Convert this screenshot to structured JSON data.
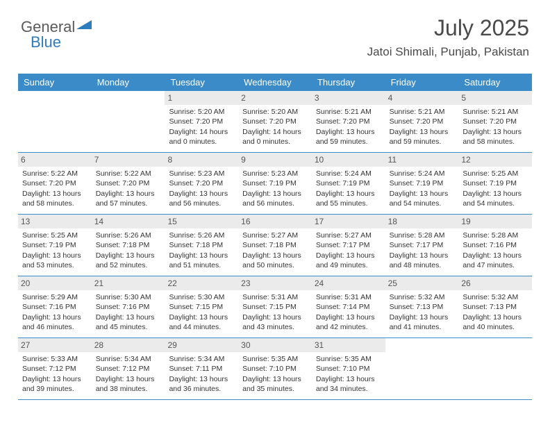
{
  "logo": {
    "text1": "General",
    "text2": "Blue"
  },
  "header": {
    "month": "July 2025",
    "location": "Jatoi Shimali, Punjab, Pakistan"
  },
  "colors": {
    "header_bar": "#3b8bc8",
    "header_text": "#ffffff",
    "daynum_bg": "#ebebeb",
    "daynum_text": "#555555",
    "body_text": "#333333",
    "logo_gray": "#5a5a5a",
    "logo_blue": "#2e7cc0",
    "title_text": "#4a4a4a"
  },
  "day_names": [
    "Sunday",
    "Monday",
    "Tuesday",
    "Wednesday",
    "Thursday",
    "Friday",
    "Saturday"
  ],
  "weeks": [
    [
      {
        "n": "",
        "sr": "",
        "ss": "",
        "dl": ""
      },
      {
        "n": "",
        "sr": "",
        "ss": "",
        "dl": ""
      },
      {
        "n": "1",
        "sr": "Sunrise: 5:20 AM",
        "ss": "Sunset: 7:20 PM",
        "dl": "Daylight: 14 hours and 0 minutes."
      },
      {
        "n": "2",
        "sr": "Sunrise: 5:20 AM",
        "ss": "Sunset: 7:20 PM",
        "dl": "Daylight: 14 hours and 0 minutes."
      },
      {
        "n": "3",
        "sr": "Sunrise: 5:21 AM",
        "ss": "Sunset: 7:20 PM",
        "dl": "Daylight: 13 hours and 59 minutes."
      },
      {
        "n": "4",
        "sr": "Sunrise: 5:21 AM",
        "ss": "Sunset: 7:20 PM",
        "dl": "Daylight: 13 hours and 59 minutes."
      },
      {
        "n": "5",
        "sr": "Sunrise: 5:21 AM",
        "ss": "Sunset: 7:20 PM",
        "dl": "Daylight: 13 hours and 58 minutes."
      }
    ],
    [
      {
        "n": "6",
        "sr": "Sunrise: 5:22 AM",
        "ss": "Sunset: 7:20 PM",
        "dl": "Daylight: 13 hours and 58 minutes."
      },
      {
        "n": "7",
        "sr": "Sunrise: 5:22 AM",
        "ss": "Sunset: 7:20 PM",
        "dl": "Daylight: 13 hours and 57 minutes."
      },
      {
        "n": "8",
        "sr": "Sunrise: 5:23 AM",
        "ss": "Sunset: 7:20 PM",
        "dl": "Daylight: 13 hours and 56 minutes."
      },
      {
        "n": "9",
        "sr": "Sunrise: 5:23 AM",
        "ss": "Sunset: 7:19 PM",
        "dl": "Daylight: 13 hours and 56 minutes."
      },
      {
        "n": "10",
        "sr": "Sunrise: 5:24 AM",
        "ss": "Sunset: 7:19 PM",
        "dl": "Daylight: 13 hours and 55 minutes."
      },
      {
        "n": "11",
        "sr": "Sunrise: 5:24 AM",
        "ss": "Sunset: 7:19 PM",
        "dl": "Daylight: 13 hours and 54 minutes."
      },
      {
        "n": "12",
        "sr": "Sunrise: 5:25 AM",
        "ss": "Sunset: 7:19 PM",
        "dl": "Daylight: 13 hours and 54 minutes."
      }
    ],
    [
      {
        "n": "13",
        "sr": "Sunrise: 5:25 AM",
        "ss": "Sunset: 7:19 PM",
        "dl": "Daylight: 13 hours and 53 minutes."
      },
      {
        "n": "14",
        "sr": "Sunrise: 5:26 AM",
        "ss": "Sunset: 7:18 PM",
        "dl": "Daylight: 13 hours and 52 minutes."
      },
      {
        "n": "15",
        "sr": "Sunrise: 5:26 AM",
        "ss": "Sunset: 7:18 PM",
        "dl": "Daylight: 13 hours and 51 minutes."
      },
      {
        "n": "16",
        "sr": "Sunrise: 5:27 AM",
        "ss": "Sunset: 7:18 PM",
        "dl": "Daylight: 13 hours and 50 minutes."
      },
      {
        "n": "17",
        "sr": "Sunrise: 5:27 AM",
        "ss": "Sunset: 7:17 PM",
        "dl": "Daylight: 13 hours and 49 minutes."
      },
      {
        "n": "18",
        "sr": "Sunrise: 5:28 AM",
        "ss": "Sunset: 7:17 PM",
        "dl": "Daylight: 13 hours and 48 minutes."
      },
      {
        "n": "19",
        "sr": "Sunrise: 5:28 AM",
        "ss": "Sunset: 7:16 PM",
        "dl": "Daylight: 13 hours and 47 minutes."
      }
    ],
    [
      {
        "n": "20",
        "sr": "Sunrise: 5:29 AM",
        "ss": "Sunset: 7:16 PM",
        "dl": "Daylight: 13 hours and 46 minutes."
      },
      {
        "n": "21",
        "sr": "Sunrise: 5:30 AM",
        "ss": "Sunset: 7:16 PM",
        "dl": "Daylight: 13 hours and 45 minutes."
      },
      {
        "n": "22",
        "sr": "Sunrise: 5:30 AM",
        "ss": "Sunset: 7:15 PM",
        "dl": "Daylight: 13 hours and 44 minutes."
      },
      {
        "n": "23",
        "sr": "Sunrise: 5:31 AM",
        "ss": "Sunset: 7:15 PM",
        "dl": "Daylight: 13 hours and 43 minutes."
      },
      {
        "n": "24",
        "sr": "Sunrise: 5:31 AM",
        "ss": "Sunset: 7:14 PM",
        "dl": "Daylight: 13 hours and 42 minutes."
      },
      {
        "n": "25",
        "sr": "Sunrise: 5:32 AM",
        "ss": "Sunset: 7:13 PM",
        "dl": "Daylight: 13 hours and 41 minutes."
      },
      {
        "n": "26",
        "sr": "Sunrise: 5:32 AM",
        "ss": "Sunset: 7:13 PM",
        "dl": "Daylight: 13 hours and 40 minutes."
      }
    ],
    [
      {
        "n": "27",
        "sr": "Sunrise: 5:33 AM",
        "ss": "Sunset: 7:12 PM",
        "dl": "Daylight: 13 hours and 39 minutes."
      },
      {
        "n": "28",
        "sr": "Sunrise: 5:34 AM",
        "ss": "Sunset: 7:12 PM",
        "dl": "Daylight: 13 hours and 38 minutes."
      },
      {
        "n": "29",
        "sr": "Sunrise: 5:34 AM",
        "ss": "Sunset: 7:11 PM",
        "dl": "Daylight: 13 hours and 36 minutes."
      },
      {
        "n": "30",
        "sr": "Sunrise: 5:35 AM",
        "ss": "Sunset: 7:10 PM",
        "dl": "Daylight: 13 hours and 35 minutes."
      },
      {
        "n": "31",
        "sr": "Sunrise: 5:35 AM",
        "ss": "Sunset: 7:10 PM",
        "dl": "Daylight: 13 hours and 34 minutes."
      },
      {
        "n": "",
        "sr": "",
        "ss": "",
        "dl": ""
      },
      {
        "n": "",
        "sr": "",
        "ss": "",
        "dl": ""
      }
    ]
  ]
}
